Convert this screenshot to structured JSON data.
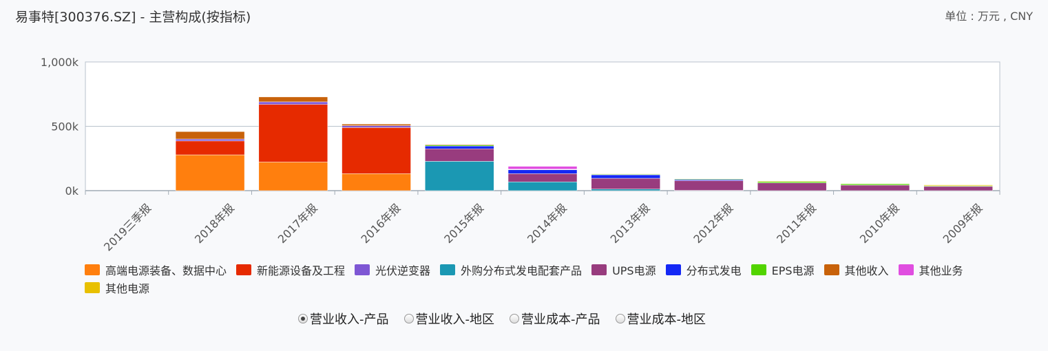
{
  "header": {
    "title": "易事特[300376.SZ] - 主营构成(按指标)",
    "unit": "单位 : 万元 , CNY"
  },
  "radios": {
    "selected_index": 0,
    "options": [
      "营业收入-产品",
      "营业收入-地区",
      "营业成本-产品",
      "营业成本-地区"
    ]
  },
  "chart_data": {
    "type": "bar",
    "stacked": true,
    "categories": [
      "2019三季报",
      "2018年报",
      "2017年报",
      "2016年报",
      "2015年报",
      "2014年报",
      "2013年报",
      "2012年报",
      "2011年报",
      "2010年报",
      "2009年报"
    ],
    "yticks": [
      "0k",
      "500k",
      "1,000k"
    ],
    "ylim": [
      0,
      1000000
    ],
    "grid": true,
    "legend_position": "bottom",
    "series": [
      {
        "name": "高端电源装备、数据中心",
        "color": "#ff7f0e",
        "values": [
          0,
          278000,
          222000,
          132000,
          0,
          0,
          0,
          0,
          0,
          0,
          0
        ]
      },
      {
        "name": "新能源设备及工程",
        "color": "#e62a00",
        "values": [
          0,
          108000,
          448000,
          358000,
          0,
          0,
          0,
          0,
          0,
          0,
          0
        ]
      },
      {
        "name": "光伏逆变器",
        "color": "#7e57d4",
        "values": [
          0,
          15000,
          20000,
          15000,
          0,
          0,
          0,
          0,
          0,
          0,
          0
        ]
      },
      {
        "name": "外购分布式发电配套产品",
        "color": "#1b98b3",
        "values": [
          0,
          0,
          0,
          0,
          228000,
          68000,
          12000,
          2000,
          0,
          0,
          0
        ]
      },
      {
        "name": "UPS电源",
        "color": "#983c7e",
        "values": [
          0,
          0,
          0,
          0,
          97000,
          64000,
          84000,
          76000,
          60000,
          43000,
          33000
        ]
      },
      {
        "name": "分布式发电",
        "color": "#1428f5",
        "values": [
          0,
          0,
          0,
          0,
          22000,
          30000,
          27000,
          8000,
          0,
          0,
          0
        ]
      },
      {
        "name": "EPS电源",
        "color": "#52d400",
        "values": [
          0,
          0,
          0,
          0,
          8000,
          3000,
          5000,
          5000,
          10000,
          10000,
          5000
        ]
      },
      {
        "name": "其他收入",
        "color": "#c8620a",
        "values": [
          0,
          58000,
          38000,
          12000,
          5000,
          2000,
          3000,
          0,
          0,
          0,
          0
        ]
      },
      {
        "name": "其他业务",
        "color": "#e04ee0",
        "values": [
          0,
          0,
          0,
          0,
          0,
          22000,
          0,
          0,
          0,
          0,
          0
        ]
      },
      {
        "name": "其他电源",
        "color": "#e8c000",
        "values": [
          0,
          0,
          0,
          0,
          0,
          0,
          3000,
          0,
          5000,
          3000,
          7000
        ]
      }
    ]
  }
}
